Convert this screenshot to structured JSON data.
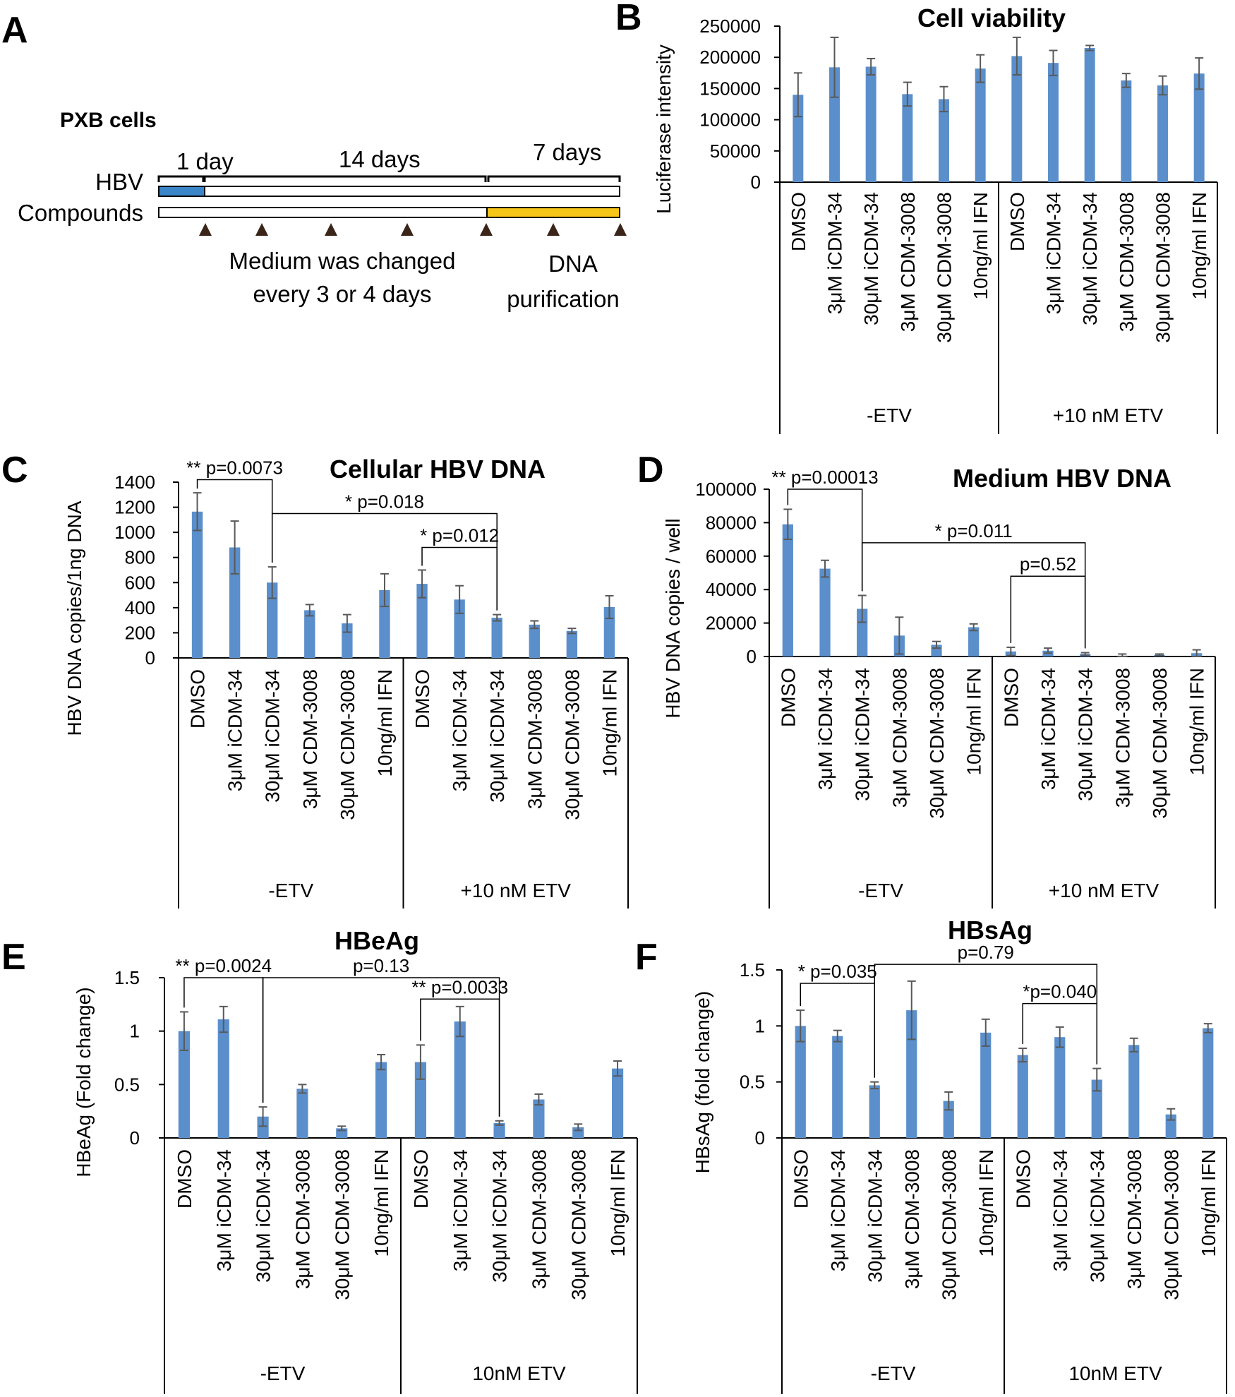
{
  "colors": {
    "bar": "#5B8FCB",
    "err": "#595959",
    "axis": "#000000",
    "hbv_bar": "#3A86C8",
    "compound_bar": "#F5C518"
  },
  "panel_a": {
    "letter": "A",
    "heading": "PXB cells",
    "day1": "1 day",
    "day14": "14 days",
    "day7": "7 days",
    "hbv_label": "HBV",
    "compounds_label": "Compounds",
    "medium_line1": "Medium was changed",
    "medium_line2": "every 3 or 4 days",
    "dna_line1": "DNA",
    "dna_line2": "purification"
  },
  "chart_data": [
    {
      "id": "B",
      "letter": "B",
      "type": "bar",
      "title": "Cell viability",
      "ylabel": "Luciferase intensity",
      "ylim": [
        0,
        250000
      ],
      "yticks": [
        "0",
        "50000",
        "100000",
        "150000",
        "200000",
        "250000"
      ],
      "categories": [
        "DMSO",
        "3μM iCDM-34",
        "30μM iCDM-34",
        "3μM CDM-3008",
        "30μM CDM-3008",
        "10ng/ml IFN",
        "DMSO",
        "3μM iCDM-34",
        "30μM iCDM-34",
        "3μM CDM-3008",
        "30μM CDM-3008",
        "10ng/ml IFN"
      ],
      "values": [
        140000,
        184000,
        185000,
        141000,
        133000,
        182000,
        202000,
        191000,
        215000,
        163000,
        155000,
        174000
      ],
      "errors": [
        35000,
        48000,
        13000,
        19000,
        20000,
        22000,
        30000,
        20000,
        4000,
        11000,
        15000,
        25000
      ],
      "groups": [
        "-ETV",
        "+10 nM ETV"
      ],
      "annotations": []
    },
    {
      "id": "C",
      "letter": "C",
      "type": "bar",
      "title": "Cellular HBV DNA",
      "ylabel": "HBV DNA copies/1ng DNA",
      "ylim": [
        0,
        1400
      ],
      "yticks": [
        "0",
        "200",
        "400",
        "600",
        "800",
        "1000",
        "1200",
        "1400"
      ],
      "categories": [
        "DMSO",
        "3μM iCDM-34",
        "30μM iCDM-34",
        "3μM CDM-3008",
        "30μM CDM-3008",
        "10ng/ml IFN",
        "DMSO",
        "3μM iCDM-34",
        "30μM iCDM-34",
        "3μM CDM-3008",
        "30μM CDM-3008",
        "10ng/ml IFN"
      ],
      "values": [
        1165,
        880,
        600,
        380,
        275,
        540,
        590,
        465,
        320,
        265,
        215,
        405
      ],
      "errors": [
        150,
        210,
        125,
        45,
        70,
        130,
        110,
        110,
        25,
        30,
        20,
        90
      ],
      "groups": [
        "-ETV",
        "+10 nM ETV"
      ],
      "annotations": [
        {
          "text": "** p=0.0073",
          "a": 0,
          "b": 2,
          "level": 1420
        },
        {
          "text": "* p=0.018",
          "a": 2,
          "b": 8,
          "level": 1150
        },
        {
          "text": "* p=0.012",
          "a": 6,
          "b": 8,
          "level": 880
        }
      ]
    },
    {
      "id": "D",
      "letter": "D",
      "type": "bar",
      "title": "Medium HBV DNA",
      "ylabel": "HBV DNA copies / well",
      "ylim": [
        0,
        100000
      ],
      "yticks": [
        "0",
        "20000",
        "40000",
        "60000",
        "80000",
        "100000"
      ],
      "categories": [
        "DMSO",
        "3μM iCDM-34",
        "30μM iCDM-34",
        "3μM CDM-3008",
        "30μM CDM-3008",
        "10ng/ml IFN",
        "DMSO",
        "3μM iCDM-34",
        "30μM iCDM-34",
        "3μM CDM-3008",
        "30μM CDM-3008",
        "10ng/ml IFN"
      ],
      "values": [
        79000,
        52500,
        28500,
        12500,
        7000,
        17500,
        3000,
        3500,
        1500,
        500,
        1000,
        2000
      ],
      "errors": [
        9000,
        5000,
        8000,
        11000,
        2000,
        2000,
        2500,
        1500,
        800,
        1000,
        500,
        2000
      ],
      "groups": [
        "-ETV",
        "+10 nM ETV"
      ],
      "annotations": [
        {
          "text": "** p=0.00013",
          "a": 0,
          "b": 2,
          "level": 100000
        },
        {
          "text": "* p=0.011",
          "a": 2,
          "b": 8,
          "level": 68000
        },
        {
          "text": "p=0.52",
          "a": 6,
          "b": 8,
          "level": 48000
        }
      ]
    },
    {
      "id": "E",
      "letter": "E",
      "type": "bar",
      "title": "HBeAg",
      "ylabel": "HBeAg (Fold change)",
      "ylim": [
        0,
        1.5
      ],
      "yticks": [
        "0",
        "0.5",
        "1",
        "1.5"
      ],
      "categories": [
        "DMSO",
        "3μM iCDM-34",
        "30μM iCDM-34",
        "3μM CDM-3008",
        "30μM CDM-3008",
        "10ng/ml IFN",
        "DMSO",
        "3μM iCDM-34",
        "30μM iCDM-34",
        "3μM CDM-3008",
        "30μM CDM-3008",
        "10ng/ml IFN"
      ],
      "values": [
        1.0,
        1.11,
        0.2,
        0.46,
        0.09,
        0.71,
        0.71,
        1.09,
        0.14,
        0.36,
        0.1,
        0.65
      ],
      "errors": [
        0.18,
        0.12,
        0.09,
        0.04,
        0.02,
        0.07,
        0.16,
        0.14,
        0.02,
        0.05,
        0.03,
        0.07
      ],
      "groups": [
        "-ETV",
        "10nM ETV"
      ],
      "annotations": [
        {
          "text": "** p=0.0024",
          "a": 0,
          "b": 2,
          "level": 1.5
        },
        {
          "text": "p=0.13",
          "a": 2,
          "b": 8,
          "level": 1.5
        },
        {
          "text": "** p=0.0033",
          "a": 6,
          "b": 8,
          "level": 1.3
        }
      ]
    },
    {
      "id": "F",
      "letter": "F",
      "type": "bar",
      "title": "HBsAg",
      "ylabel": "HBsAg (fold change)",
      "ylim": [
        0,
        1.5
      ],
      "yticks": [
        "0",
        "0.5",
        "1",
        "1.5"
      ],
      "categories": [
        "DMSO",
        "3μM iCDM-34",
        "30μM iCDM-34",
        "3μM CDM-3008",
        "30μM CDM-3008",
        "10ng/ml IFN",
        "DMSO",
        "3μM iCDM-34",
        "30μM iCDM-34",
        "3μM CDM-3008",
        "30μM CDM-3008",
        "10ng/ml IFN"
      ],
      "values": [
        1.0,
        0.91,
        0.47,
        1.14,
        0.33,
        0.94,
        0.74,
        0.9,
        0.52,
        0.83,
        0.21,
        0.98
      ],
      "errors": [
        0.14,
        0.05,
        0.03,
        0.26,
        0.08,
        0.12,
        0.06,
        0.09,
        0.1,
        0.06,
        0.05,
        0.04
      ],
      "groups": [
        "-ETV",
        "10nM ETV"
      ],
      "annotations": [
        {
          "text": "* p=0.035",
          "a": 0,
          "b": 2,
          "level": 1.38
        },
        {
          "text": "p=0.79",
          "a": 2,
          "b": 8,
          "level": 1.55
        },
        {
          "text": "*p=0.040",
          "a": 6,
          "b": 8,
          "level": 1.2
        }
      ]
    }
  ]
}
